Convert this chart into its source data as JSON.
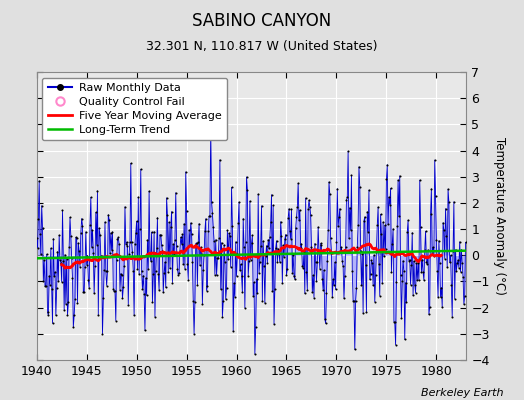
{
  "title": "SABINO CANYON",
  "subtitle": "32.301 N, 110.817 W (United States)",
  "credit": "Berkeley Earth",
  "ylabel": "Temperature Anomaly (°C)",
  "xlim": [
    1940,
    1983
  ],
  "ylim": [
    -4,
    7
  ],
  "yticks": [
    -4,
    -3,
    -2,
    -1,
    0,
    1,
    2,
    3,
    4,
    5,
    6,
    7
  ],
  "xticks": [
    1940,
    1945,
    1950,
    1955,
    1960,
    1965,
    1970,
    1975,
    1980
  ],
  "fig_bg": "#e0e0e0",
  "plot_bg": "#e8e8e8",
  "grid_color": "#ffffff",
  "line_color_raw": "#0000cc",
  "fill_color_raw": "#aaaaff",
  "line_color_ma": "#ff0000",
  "line_color_trend": "#00bb00",
  "marker_color": "#000000",
  "qc_marker_color": "#ff88cc",
  "start_year": 1940,
  "n_months": 516,
  "seed": 42,
  "ma_window": 60
}
